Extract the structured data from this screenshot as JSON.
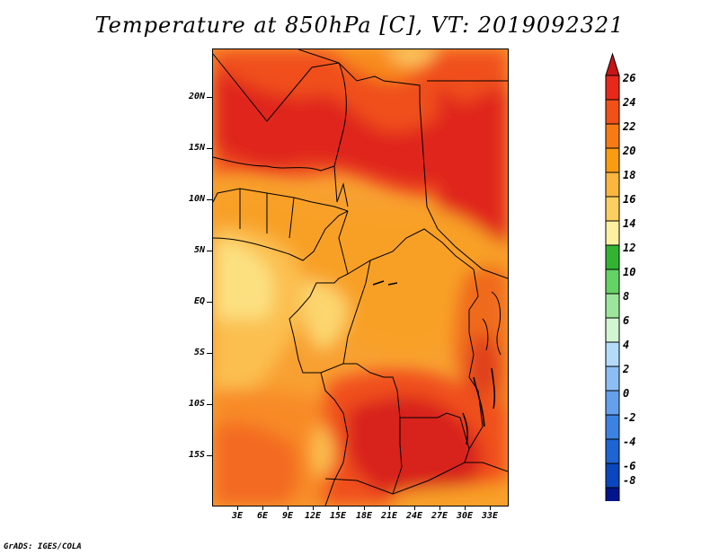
{
  "title": "Temperature at 850hPa [C], VT: 2019092321",
  "footer": "GrADS: IGES/COLA",
  "y_axis": {
    "labels": [
      "20N",
      "15N",
      "10N",
      "5N",
      "EQ",
      "5S",
      "10S",
      "15S"
    ],
    "values": [
      20,
      15,
      10,
      5,
      0,
      -5,
      -10,
      -15
    ]
  },
  "x_axis": {
    "labels": [
      "3E",
      "6E",
      "9E",
      "12E",
      "15E",
      "18E",
      "21E",
      "24E",
      "27E",
      "30E",
      "33E"
    ],
    "values": [
      3,
      6,
      9,
      12,
      15,
      18,
      21,
      24,
      27,
      30,
      33
    ]
  },
  "colorbar": {
    "labels": [
      "26",
      "24",
      "22",
      "20",
      "18",
      "16",
      "14",
      "12",
      "10",
      "8",
      "6",
      "4",
      "2",
      "0",
      "-2",
      "-4",
      "-6",
      "-8"
    ],
    "colors": [
      "#e8281a",
      "#f25019",
      "#f87a14",
      "#fa9c10",
      "#fbb640",
      "#fcd060",
      "#fdf0a0",
      "#32b432",
      "#64d264",
      "#9ce69c",
      "#d2f5d2",
      "#b4dcfa",
      "#8cbef5",
      "#64a0eb",
      "#3c82e1",
      "#1e64d2",
      "#0a46be",
      "#00148c"
    ],
    "overflow_high_color": "#c81414",
    "overflow_low_color": "#dcdcf8"
  }
}
